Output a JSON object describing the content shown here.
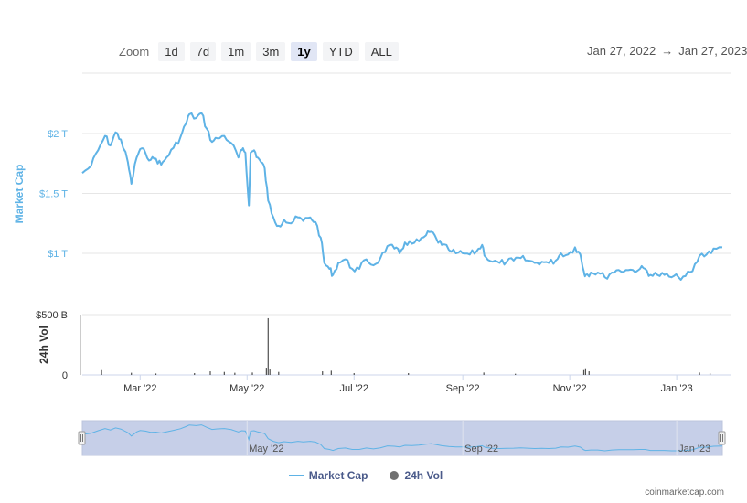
{
  "zoom": {
    "label": "Zoom",
    "buttons": [
      "1d",
      "7d",
      "1m",
      "3m",
      "1y",
      "YTD",
      "ALL"
    ],
    "active": "1y"
  },
  "date_range": {
    "from": "Jan 27, 2022",
    "arrow": "→",
    "to": "Jan 27, 2023"
  },
  "legend": {
    "market_cap": "Market Cap",
    "vol": "24h Vol"
  },
  "credits": "coinmarketcap.com",
  "colors": {
    "market_cap": "#5fb3e6",
    "volume": "#505050",
    "navigator_fill": "#c6cfe8"
  },
  "chart_data": {
    "type": "line",
    "x_start": "2022-01-27",
    "x_end": "2023-01-27",
    "market_cap_axis": {
      "label": "Market Cap",
      "ticks": [
        {
          "value": 1.0,
          "label": "$1 T"
        },
        {
          "value": 1.5,
          "label": "$1.5 T"
        },
        {
          "value": 2.0,
          "label": "$2 T"
        }
      ]
    },
    "volume_axis": {
      "label": "24h Vol",
      "ticks": [
        {
          "value": 0,
          "label": "0"
        },
        {
          "value": 500,
          "label": "$500 B"
        }
      ]
    },
    "x_ticks": [
      {
        "date": "2022-03-01",
        "label": "Mar '22"
      },
      {
        "date": "2022-05-01",
        "label": "May '22"
      },
      {
        "date": "2022-07-01",
        "label": "Jul '22"
      },
      {
        "date": "2022-09-01",
        "label": "Sep '22"
      },
      {
        "date": "2022-11-01",
        "label": "Nov '22"
      },
      {
        "date": "2023-01-01",
        "label": "Jan '23"
      }
    ],
    "navigator_ticks": [
      {
        "date": "2022-05-01",
        "label": "May '22"
      },
      {
        "date": "2022-09-01",
        "label": "Sep '22"
      },
      {
        "date": "2023-01-01",
        "label": "Jan '23"
      }
    ],
    "series": [
      {
        "name": "Market Cap",
        "unit": "T",
        "points": [
          [
            "2022-01-27",
            1.67
          ],
          [
            "2022-02-01",
            1.73
          ],
          [
            "2022-02-05",
            1.86
          ],
          [
            "2022-02-09",
            1.98
          ],
          [
            "2022-02-12",
            1.9
          ],
          [
            "2022-02-15",
            2.01
          ],
          [
            "2022-02-18",
            1.95
          ],
          [
            "2022-02-22",
            1.76
          ],
          [
            "2022-02-24",
            1.58
          ],
          [
            "2022-02-27",
            1.8
          ],
          [
            "2022-03-01",
            1.87
          ],
          [
            "2022-03-04",
            1.84
          ],
          [
            "2022-03-07",
            1.78
          ],
          [
            "2022-03-10",
            1.79
          ],
          [
            "2022-03-13",
            1.74
          ],
          [
            "2022-03-16",
            1.8
          ],
          [
            "2022-03-20",
            1.88
          ],
          [
            "2022-03-24",
            1.97
          ],
          [
            "2022-03-27",
            2.08
          ],
          [
            "2022-03-29",
            2.16
          ],
          [
            "2022-04-02",
            2.13
          ],
          [
            "2022-04-05",
            2.17
          ],
          [
            "2022-04-08",
            2.04
          ],
          [
            "2022-04-11",
            1.93
          ],
          [
            "2022-04-14",
            1.96
          ],
          [
            "2022-04-18",
            1.98
          ],
          [
            "2022-04-22",
            1.92
          ],
          [
            "2022-04-26",
            1.8
          ],
          [
            "2022-04-28",
            1.86
          ],
          [
            "2022-04-30",
            1.84
          ],
          [
            "2022-05-02",
            1.4
          ],
          [
            "2022-05-03",
            1.84
          ],
          [
            "2022-05-05",
            1.86
          ],
          [
            "2022-05-07",
            1.8
          ],
          [
            "2022-05-09",
            1.76
          ],
          [
            "2022-05-11",
            1.71
          ],
          [
            "2022-05-13",
            1.44
          ],
          [
            "2022-05-16",
            1.3
          ],
          [
            "2022-05-19",
            1.23
          ],
          [
            "2022-05-22",
            1.28
          ],
          [
            "2022-05-26",
            1.25
          ],
          [
            "2022-05-30",
            1.3
          ],
          [
            "2022-06-02",
            1.27
          ],
          [
            "2022-06-06",
            1.3
          ],
          [
            "2022-06-09",
            1.26
          ],
          [
            "2022-06-12",
            1.13
          ],
          [
            "2022-06-14",
            0.92
          ],
          [
            "2022-06-17",
            0.87
          ],
          [
            "2022-06-19",
            0.82
          ],
          [
            "2022-06-22",
            0.92
          ],
          [
            "2022-06-26",
            0.95
          ],
          [
            "2022-06-30",
            0.87
          ],
          [
            "2022-07-04",
            0.87
          ],
          [
            "2022-07-08",
            0.95
          ],
          [
            "2022-07-12",
            0.9
          ],
          [
            "2022-07-16",
            0.96
          ],
          [
            "2022-07-20",
            1.06
          ],
          [
            "2022-07-24",
            1.04
          ],
          [
            "2022-07-27",
            1.0
          ],
          [
            "2022-07-30",
            1.09
          ],
          [
            "2022-08-03",
            1.08
          ],
          [
            "2022-08-07",
            1.1
          ],
          [
            "2022-08-11",
            1.15
          ],
          [
            "2022-08-14",
            1.18
          ],
          [
            "2022-08-17",
            1.12
          ],
          [
            "2022-08-20",
            1.07
          ],
          [
            "2022-08-24",
            1.03
          ],
          [
            "2022-08-28",
            1.0
          ],
          [
            "2022-09-01",
            1.0
          ],
          [
            "2022-09-05",
            0.99
          ],
          [
            "2022-09-09",
            1.02
          ],
          [
            "2022-09-12",
            1.07
          ],
          [
            "2022-09-14",
            0.97
          ],
          [
            "2022-09-18",
            0.93
          ],
          [
            "2022-09-22",
            0.92
          ],
          [
            "2022-09-26",
            0.93
          ],
          [
            "2022-09-30",
            0.94
          ],
          [
            "2022-10-04",
            0.96
          ],
          [
            "2022-10-08",
            0.94
          ],
          [
            "2022-10-12",
            0.92
          ],
          [
            "2022-10-16",
            0.93
          ],
          [
            "2022-10-20",
            0.92
          ],
          [
            "2022-10-24",
            0.94
          ],
          [
            "2022-10-27",
            1.0
          ],
          [
            "2022-10-31",
            0.99
          ],
          [
            "2022-11-04",
            1.05
          ],
          [
            "2022-11-07",
            0.99
          ],
          [
            "2022-11-09",
            0.85
          ],
          [
            "2022-11-10",
            0.82
          ],
          [
            "2022-11-13",
            0.84
          ],
          [
            "2022-11-17",
            0.84
          ],
          [
            "2022-11-21",
            0.8
          ],
          [
            "2022-11-25",
            0.84
          ],
          [
            "2022-11-29",
            0.86
          ],
          [
            "2022-12-03",
            0.86
          ],
          [
            "2022-12-07",
            0.86
          ],
          [
            "2022-12-11",
            0.87
          ],
          [
            "2022-12-14",
            0.87
          ],
          [
            "2022-12-17",
            0.82
          ],
          [
            "2022-12-21",
            0.82
          ],
          [
            "2022-12-25",
            0.82
          ],
          [
            "2022-12-29",
            0.8
          ],
          [
            "2023-01-02",
            0.8
          ],
          [
            "2023-01-06",
            0.81
          ],
          [
            "2023-01-10",
            0.85
          ],
          [
            "2023-01-14",
            0.98
          ],
          [
            "2023-01-18",
            0.99
          ],
          [
            "2023-01-22",
            1.04
          ],
          [
            "2023-01-27",
            1.05
          ]
        ]
      },
      {
        "name": "24h Vol",
        "unit": "B",
        "points": [
          [
            "2022-02-07",
            40
          ],
          [
            "2022-02-24",
            18
          ],
          [
            "2022-03-10",
            12
          ],
          [
            "2022-04-01",
            15
          ],
          [
            "2022-04-10",
            30
          ],
          [
            "2022-04-18",
            25
          ],
          [
            "2022-04-24",
            18
          ],
          [
            "2022-05-04",
            20
          ],
          [
            "2022-05-12",
            60
          ],
          [
            "2022-05-13",
            470
          ],
          [
            "2022-05-14",
            45
          ],
          [
            "2022-05-19",
            25
          ],
          [
            "2022-06-13",
            30
          ],
          [
            "2022-06-18",
            35
          ],
          [
            "2022-07-01",
            15
          ],
          [
            "2022-08-01",
            15
          ],
          [
            "2022-09-13",
            20
          ],
          [
            "2022-10-01",
            10
          ],
          [
            "2022-11-09",
            40
          ],
          [
            "2022-11-10",
            55
          ],
          [
            "2022-11-12",
            30
          ],
          [
            "2023-01-14",
            20
          ],
          [
            "2023-01-20",
            15
          ]
        ]
      }
    ]
  }
}
